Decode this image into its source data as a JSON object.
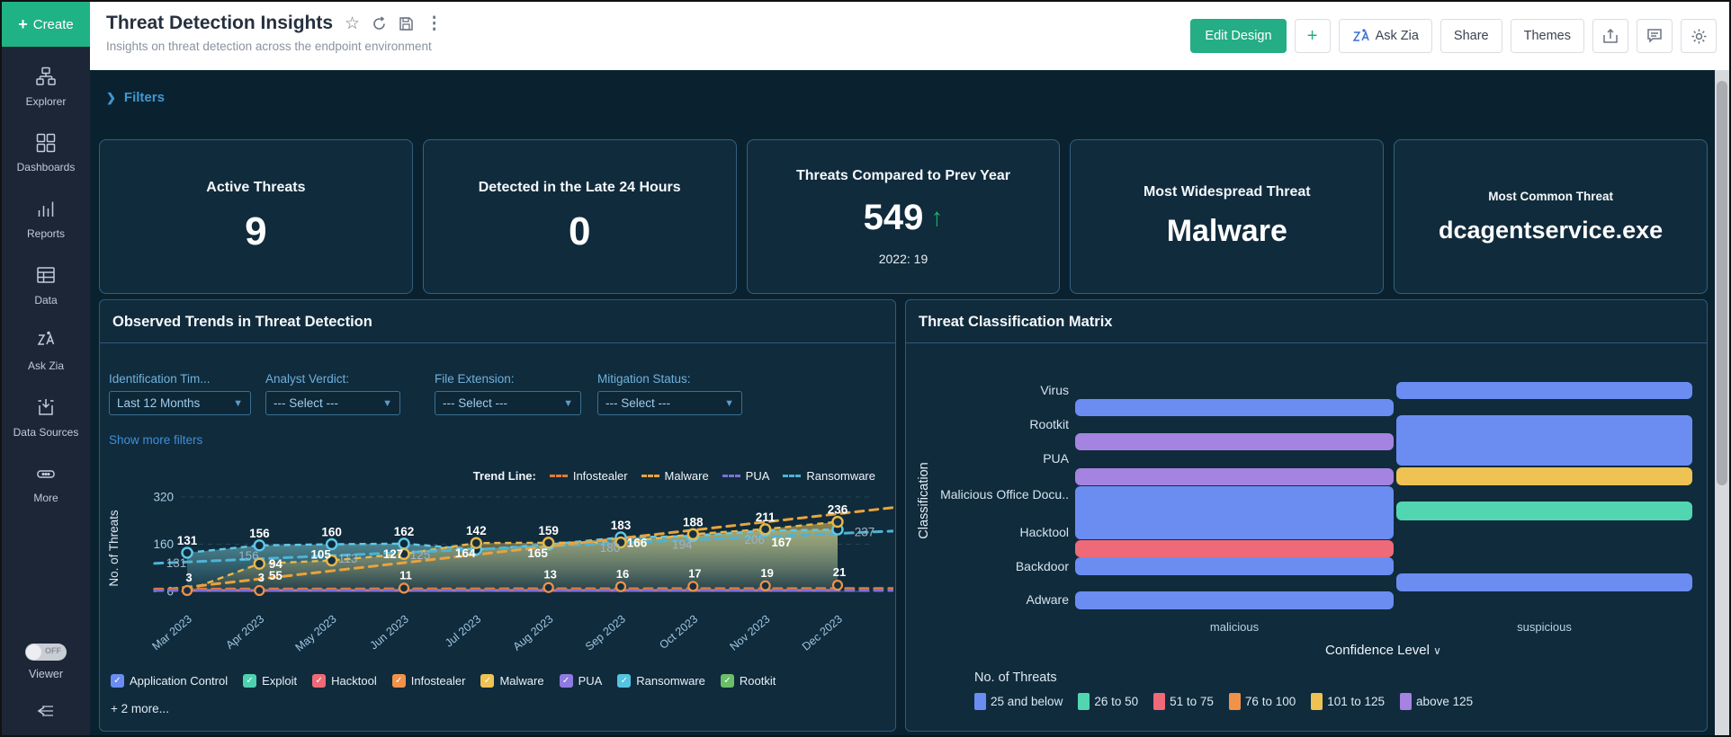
{
  "sidebar": {
    "create_label": "Create",
    "items": [
      {
        "label": "Explorer",
        "icon": "explorer-icon"
      },
      {
        "label": "Dashboards",
        "icon": "dashboards-icon"
      },
      {
        "label": "Reports",
        "icon": "reports-icon"
      },
      {
        "label": "Data",
        "icon": "data-icon"
      },
      {
        "label": "Ask Zia",
        "icon": "zia-icon"
      },
      {
        "label": "Data Sources",
        "icon": "data-sources-icon"
      },
      {
        "label": "More",
        "icon": "more-icon"
      }
    ],
    "viewer": {
      "label": "Viewer",
      "toggle": "OFF"
    }
  },
  "header": {
    "title": "Threat Detection Insights",
    "subtitle": "Insights on threat detection across the endpoint environment",
    "buttons": {
      "edit_design": "Edit Design",
      "add": "+",
      "ask_zia": "Ask Zia",
      "share": "Share",
      "themes": "Themes"
    }
  },
  "filters_bar": {
    "label": "Filters"
  },
  "kpi_cards": [
    {
      "title": "Active Threats",
      "value": "9"
    },
    {
      "title": "Detected in the Late 24 Hours",
      "value": "0"
    },
    {
      "title": "Threats Compared to Prev Year",
      "value": "549",
      "trend": "up",
      "subtext": "2022: 19",
      "arrow_color": "#1fae63"
    },
    {
      "title": "Most Widespread Threat",
      "value": "Malware"
    },
    {
      "title": "Most Common Threat",
      "value": "dcagentservice.exe"
    }
  ],
  "trends_panel": {
    "title": "Observed Trends in Threat Detection",
    "filters": [
      {
        "label": "Identification Tim...",
        "value": "Last 12 Months"
      },
      {
        "label": "Analyst Verdict:",
        "value": "--- Select ---"
      },
      {
        "label": "File Extension:",
        "value": "--- Select ---"
      },
      {
        "label": "Mitigation Status:",
        "value": "--- Select ---"
      }
    ],
    "show_more": "Show more filters",
    "trend_legend": {
      "label": "Trend Line:",
      "items": [
        {
          "name": "Infostealer",
          "color": "#e07b39"
        },
        {
          "name": "Malware",
          "color": "#e8a33d"
        },
        {
          "name": "PUA",
          "color": "#7d6fd9"
        },
        {
          "name": "Ransomware",
          "color": "#4db3d4"
        }
      ]
    },
    "chart_data": {
      "type": "area",
      "x": [
        "Mar 2023",
        "Apr 2023",
        "May 2023",
        "Jun 2023",
        "Jul 2023",
        "Aug 2023",
        "Sep 2023",
        "Oct 2023",
        "Nov 2023",
        "Dec 2023"
      ],
      "ylabel": "No. of Threats",
      "yticks": [
        0,
        160,
        320
      ],
      "ylim": [
        0,
        320
      ],
      "series": [
        {
          "name": "Ransomware",
          "color": "#5fc8e8",
          "fill": "#7fd0d8",
          "values": [
            131,
            156,
            160,
            162,
            142,
            159,
            183,
            188,
            206,
            210
          ]
        },
        {
          "name": "Malware",
          "color": "#e8b84a",
          "fill": "#d8b254",
          "values": [
            3,
            94,
            105,
            127,
            164,
            165,
            166,
            194,
            211,
            236
          ]
        },
        {
          "name": "Hacktool",
          "color": "#ee6a78",
          "values": [
            3,
            3,
            4,
            11,
            12,
            13,
            16,
            17,
            19,
            21
          ]
        }
      ],
      "trend_lines": [
        {
          "name": "Ransomware trend",
          "color": "#4db3d4",
          "points": [
            [
              -0.45,
              95
            ],
            [
              9.8,
              205
            ]
          ]
        },
        {
          "name": "Malware trend",
          "color": "#e8a33d",
          "points": [
            [
              -0.45,
              2
            ],
            [
              9.8,
              285
            ]
          ]
        },
        {
          "name": "Infostealer trend",
          "color": "#e07b39",
          "points": [
            [
              -0.45,
              8
            ],
            [
              9.8,
              10
            ]
          ]
        },
        {
          "name": "PUA trend",
          "color": "#7d6fd9",
          "points": [
            [
              -0.45,
              3
            ],
            [
              9.8,
              3
            ]
          ]
        }
      ],
      "point_labels": [
        [
          {
            "v": 131
          },
          {
            "v": 131,
            "muted": true
          },
          {
            "v": 3
          }
        ],
        [
          {
            "v": 156
          },
          {
            "v": 156,
            "muted": true
          },
          {
            "v": 94
          },
          {
            "v": 55
          },
          {
            "v": 3
          }
        ],
        [
          {
            "v": 160
          },
          {
            "v": 105
          },
          {
            "v": 113,
            "muted": true
          }
        ],
        [
          {
            "v": 162
          },
          {
            "v": 127
          },
          {
            "v": 125,
            "muted": true
          },
          {
            "v": 11
          }
        ],
        [
          {
            "v": 142
          },
          {
            "v": 164
          }
        ],
        [
          {
            "v": 159
          },
          {
            "v": 165
          },
          {
            "v": 13
          }
        ],
        [
          {
            "v": 183
          },
          {
            "v": 180,
            "muted": true
          },
          {
            "v": 166
          },
          {
            "v": 16
          }
        ],
        [
          {
            "v": 188
          },
          {
            "v": 194,
            "muted": true
          },
          {
            "v": 17
          }
        ],
        [
          {
            "v": 211
          },
          {
            "v": 206,
            "muted": true
          },
          {
            "v": 167
          },
          {
            "v": 19
          }
        ],
        [
          {
            "v": 236
          },
          {
            "v": 237,
            "muted": true
          },
          {
            "v": 21
          }
        ]
      ]
    },
    "series_legend": [
      {
        "name": "Application Control",
        "color": "#6b8df2"
      },
      {
        "name": "Exploit",
        "color": "#4fd1b0"
      },
      {
        "name": "Hacktool",
        "color": "#ee6a78"
      },
      {
        "name": "Infostealer",
        "color": "#f0924a"
      },
      {
        "name": "Malware",
        "color": "#eec253"
      },
      {
        "name": "PUA",
        "color": "#8f7be0"
      },
      {
        "name": "Ransomware",
        "color": "#55c4e0"
      },
      {
        "name": "Rootkit",
        "color": "#6abf69"
      }
    ],
    "more_label": "+ 2 more..."
  },
  "matrix_panel": {
    "title": "Threat Classification Matrix",
    "chart_data": {
      "type": "heatmap",
      "ylabel": "Classification",
      "xlabel": "Confidence Level",
      "rows": [
        "Virus",
        "Rootkit",
        "PUA",
        "Malicious Office Docu..",
        "Hacktool",
        "Backdoor",
        "Adware"
      ],
      "columns": [
        "malicious",
        "suspicious"
      ],
      "cells": [
        {
          "row": "Virus",
          "col": "malicious",
          "bin": "25 and below"
        },
        {
          "row": "Virus",
          "col": "suspicious",
          "bin": "25 and below"
        },
        {
          "row": "Rootkit",
          "col": "malicious",
          "bin": "above 125"
        },
        {
          "row": "Rootkit",
          "col": "suspicious",
          "bin": "25 and below"
        },
        {
          "row": "PUA",
          "col": "malicious",
          "bin": "above 125"
        },
        {
          "row": "PUA",
          "col": "suspicious",
          "bin": "101 to 125"
        },
        {
          "row": "Malicious Office Docu..",
          "col": "malicious",
          "bin": "25 and below"
        },
        {
          "row": "Malicious Office Docu..",
          "col": "suspicious",
          "bin": "26 to 50"
        },
        {
          "row": "Hacktool",
          "col": "malicious",
          "bin": "51 to 75"
        },
        {
          "row": "Backdoor",
          "col": "malicious",
          "bin": "25 and below"
        },
        {
          "row": "Adware",
          "col": "malicious",
          "bin": "25 and below"
        },
        {
          "row": "Adware",
          "col": "suspicious",
          "bin": "25 and below"
        }
      ],
      "legend": {
        "title": "No. of Threats",
        "bins": [
          {
            "label": "25 and below",
            "color": "#6b8df2"
          },
          {
            "label": "26 to 50",
            "color": "#52d6b2"
          },
          {
            "label": "51 to 75",
            "color": "#ee6a78"
          },
          {
            "label": "76 to 100",
            "color": "#f0924a"
          },
          {
            "label": "101 to 125",
            "color": "#eec253"
          },
          {
            "label": "above 125",
            "color": "#a583e0"
          }
        ]
      }
    }
  }
}
